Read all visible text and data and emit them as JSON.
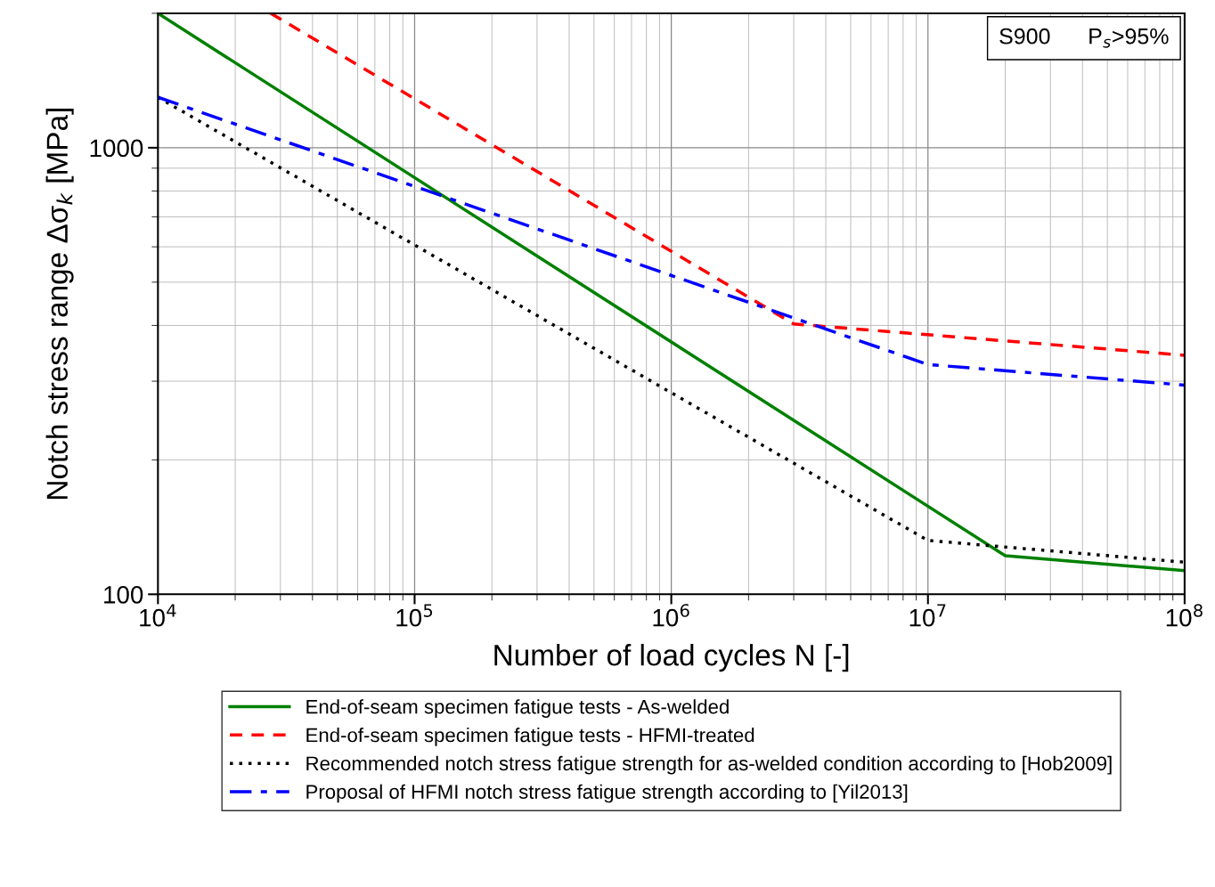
{
  "chart_data": {
    "type": "line",
    "xlabel": "Number of load cycles N [-]",
    "ylabel": "Notch stress range Δσ$_{k}$ [MPa]",
    "log": "xy",
    "grid": true,
    "legend": "bottom",
    "xlim": [
      10000,
      100000000
    ],
    "ylim": [
      100,
      2000
    ],
    "xticks": [
      {
        "value": 10000,
        "label": "10$^{4}$"
      },
      {
        "value": 100000,
        "label": "10$^{5}$"
      },
      {
        "value": 1000000,
        "label": "10$^{6}$"
      },
      {
        "value": 10000000,
        "label": "10$^{7}$"
      },
      {
        "value": 100000000,
        "label": "10$^{8}$"
      }
    ],
    "yticks": [
      100,
      1000
    ],
    "annotations": [
      "S900      P$_{s}$>95%"
    ],
    "series": [
      {
        "name": "End-of-seam specimen fatigue tests - As-welded",
        "color": "#008000",
        "line_style": "solid",
        "x": [
          10000,
          20000000,
          100000000
        ],
        "values": [
          2000,
          122,
          113
        ]
      },
      {
        "name": "End-of-seam specimen fatigue tests - HFMI-treated",
        "color": "#ff0000",
        "line_style": "dashed",
        "x": [
          27500,
          3000000,
          100000000
        ],
        "values": [
          2000,
          403,
          343
        ]
      },
      {
        "name": "Recommended notch stress fatigue strength for as-welded condition according to [Hob2009]",
        "color": "#000000",
        "line_style": "dotted",
        "x": [
          10000,
          10000000,
          100000000
        ],
        "values": [
          1297,
          132,
          118
        ]
      },
      {
        "name": "Proposal of HFMI notch stress fatigue strength according to [Yil2013]",
        "color": "#0000ff",
        "line_style": "dashdot",
        "x": [
          10000,
          10000000,
          100000000
        ],
        "values": [
          1297,
          327,
          294
        ]
      }
    ]
  }
}
